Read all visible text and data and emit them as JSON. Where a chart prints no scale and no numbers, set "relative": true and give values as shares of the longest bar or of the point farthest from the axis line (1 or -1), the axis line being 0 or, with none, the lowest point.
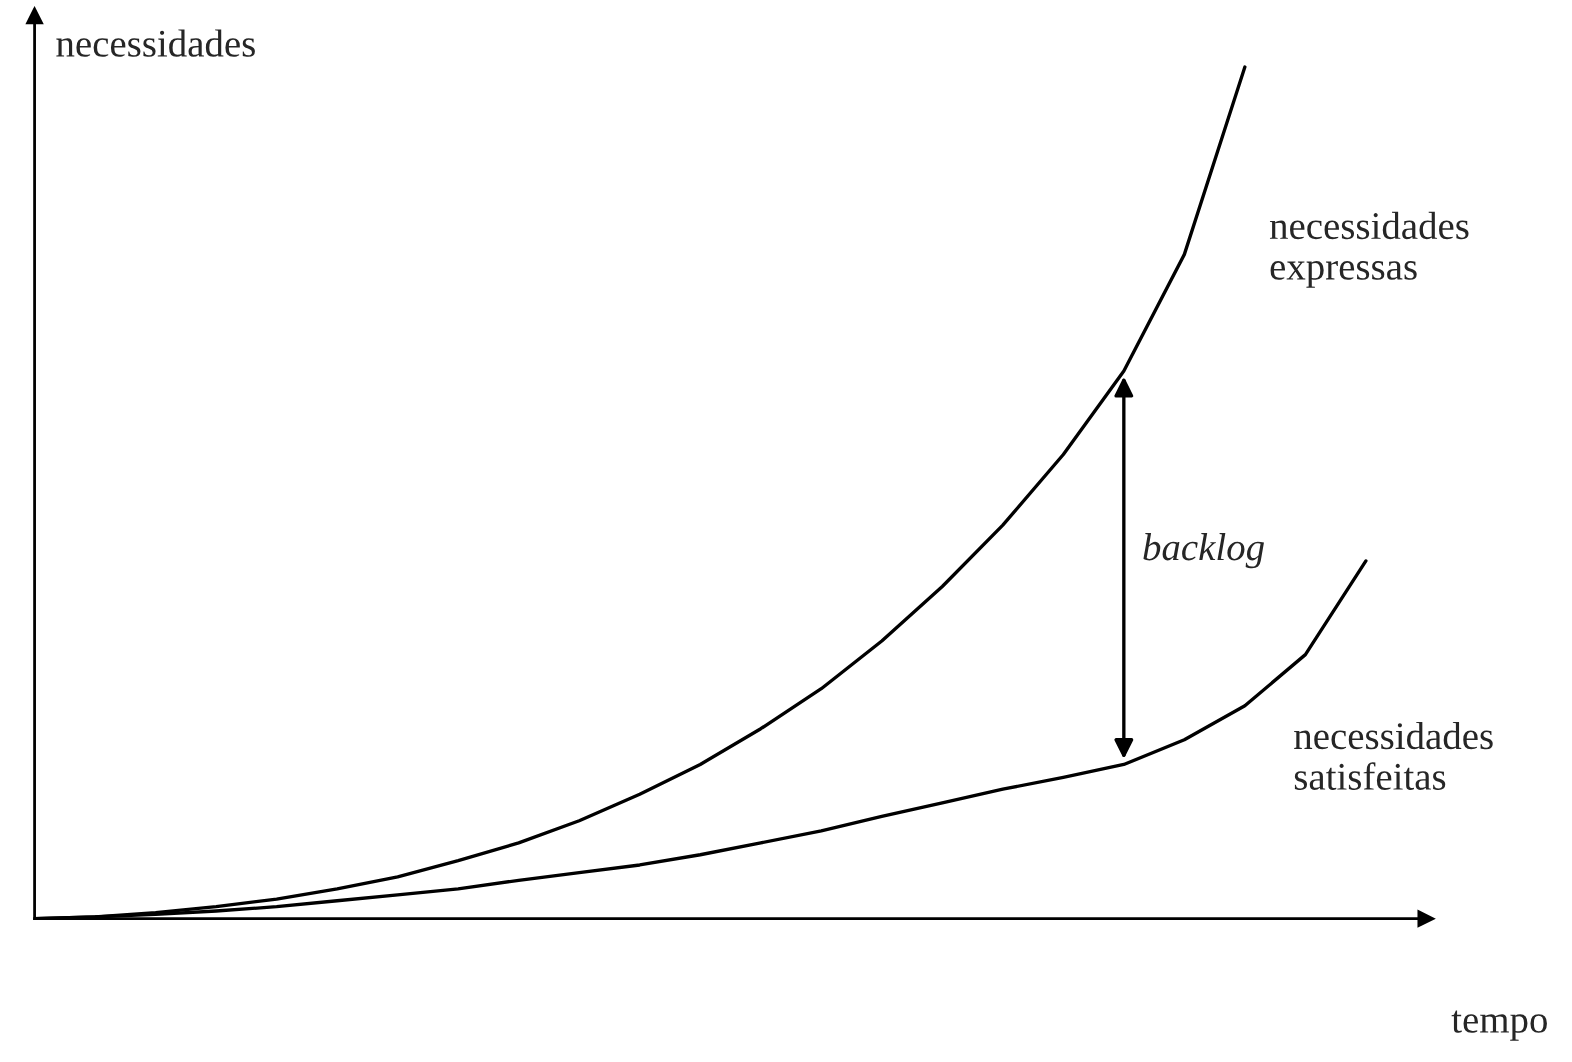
{
  "chart_data": {
    "type": "line",
    "relative": true,
    "xlabel": "tempo",
    "ylabel": "necessidades",
    "categories": [
      null,
      null,
      null,
      null,
      null,
      null,
      null,
      null,
      null,
      null,
      null,
      null,
      null,
      null,
      null,
      null,
      null,
      null,
      null,
      null,
      null,
      null,
      null
    ],
    "series": [
      {
        "name": "necessidades\nexpressas",
        "color": "#000000",
        "values": [
          0,
          0.002,
          0.007,
          0.014,
          0.023,
          0.035,
          0.049,
          0.068,
          0.089,
          0.115,
          0.146,
          0.181,
          0.223,
          0.27,
          0.326,
          0.39,
          0.462,
          0.545,
          0.643,
          0.78,
          1.0,
          null,
          null
        ]
      },
      {
        "name": "necessidades\nsatisfeitas",
        "color": "#000000",
        "values": [
          0,
          0.002,
          0.005,
          0.009,
          0.014,
          0.021,
          0.028,
          0.035,
          0.045,
          0.054,
          0.063,
          0.075,
          0.089,
          0.103,
          0.12,
          0.136,
          0.152,
          0.166,
          0.181,
          0.21,
          0.25,
          0.31,
          0.42
        ]
      }
    ],
    "annotations": [
      "backlog"
    ],
    "marker": "none",
    "line_style": "solid"
  }
}
